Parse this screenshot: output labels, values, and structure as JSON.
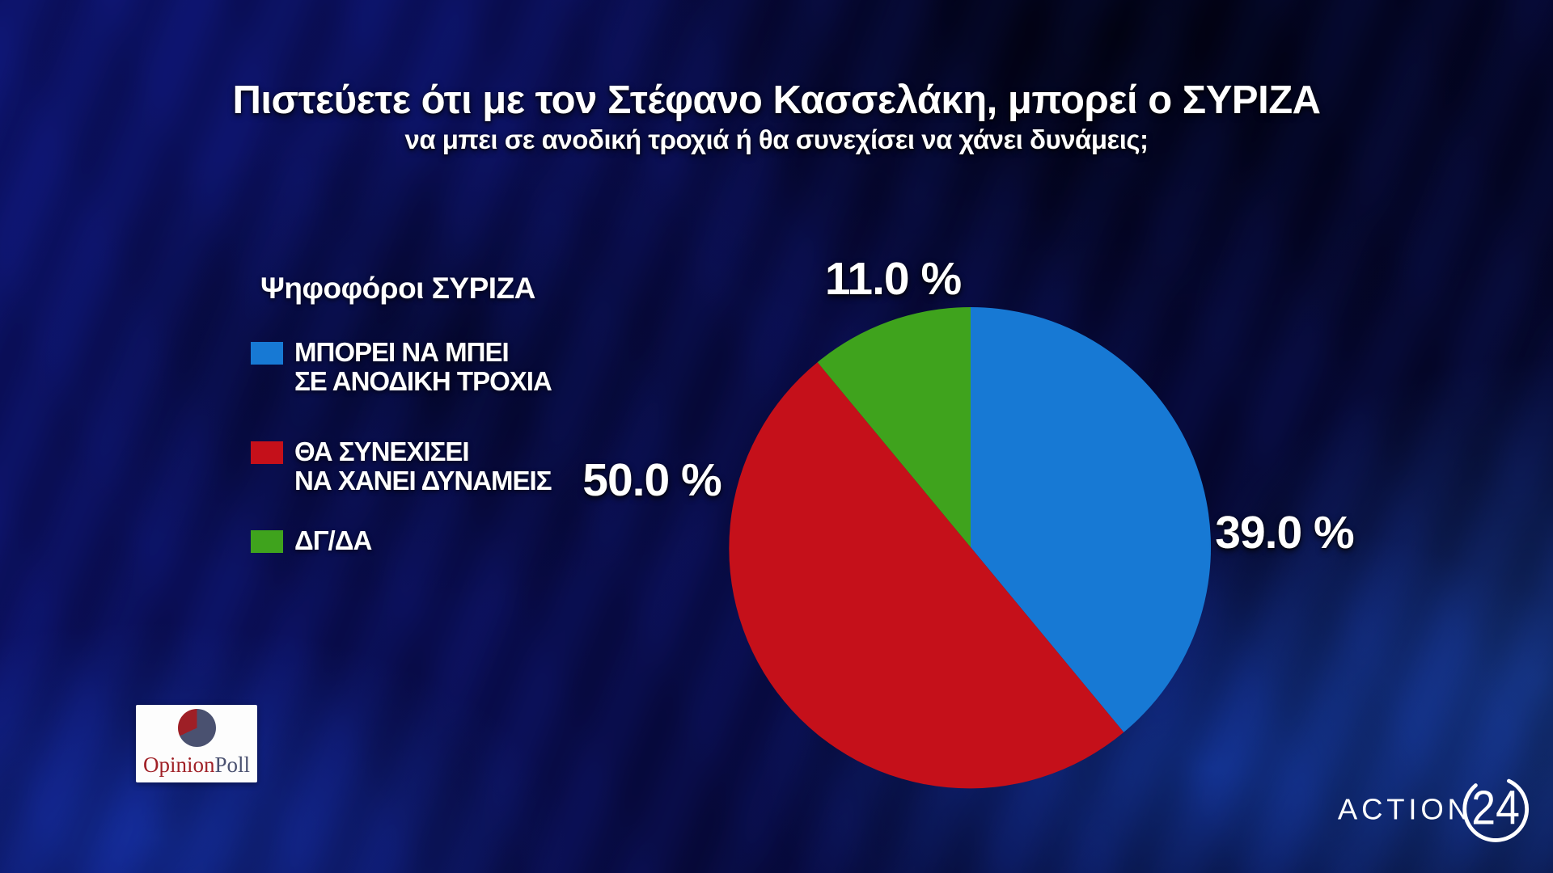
{
  "header": {
    "title": "Πιστεύετε ότι με τον Στέφανο Κασσελάκη, μπορεί ο ΣΥΡΙΖΑ",
    "subtitle": "να μπει σε ανοδική τροχιά ή θα συνεχίσει να χάνει δυνάμεις;"
  },
  "legend": {
    "title": "Ψηφοφόροι ΣΥΡΙΖΑ"
  },
  "chart_data": {
    "type": "pie",
    "title": "Ψηφοφόροι ΣΥΡΙΖΑ",
    "start_angle_deg": 0,
    "direction": "clockwise",
    "legend_position": "left",
    "series": [
      {
        "label": "ΜΠΟΡΕΙ ΝΑ ΜΠΕΙ ΣΕ ΑΝΟΔΙΚΗ ΤΡΟΧΙΑ",
        "legend_lines": [
          "ΜΠΟΡΕΙ ΝΑ ΜΠΕΙ",
          "ΣΕ ΑΝΟΔΙΚΗ ΤΡΟΧΙΑ"
        ],
        "value": 39.0,
        "pct_label": "39.0 %",
        "color": "#1779d4"
      },
      {
        "label": "ΘΑ ΣΥΝΕΧΙΣΕΙ ΝΑ ΧΑΝΕΙ ΔΥΝΑΜΕΙΣ",
        "legend_lines": [
          "ΘΑ ΣΥΝΕΧΙΣΕΙ",
          "ΝΑ ΧΑΝΕΙ ΔΥΝΑΜΕΙΣ"
        ],
        "value": 50.0,
        "pct_label": "50.0 %",
        "color": "#c5101a"
      },
      {
        "label": "ΔΓ/ΔΑ",
        "legend_lines": [
          "ΔΓ/ΔΑ"
        ],
        "value": 11.0,
        "pct_label": "11.0 %",
        "color": "#3fa31d"
      }
    ]
  },
  "branding": {
    "pollster": {
      "word1": "Opinion",
      "word2": "Poll"
    },
    "channel": {
      "name": "ACTION",
      "number": "24"
    }
  },
  "colors": {
    "background": "#0a0d55",
    "text": "#ffffff",
    "blue": "#1779d4",
    "red": "#c5101a",
    "green": "#3fa31d"
  }
}
